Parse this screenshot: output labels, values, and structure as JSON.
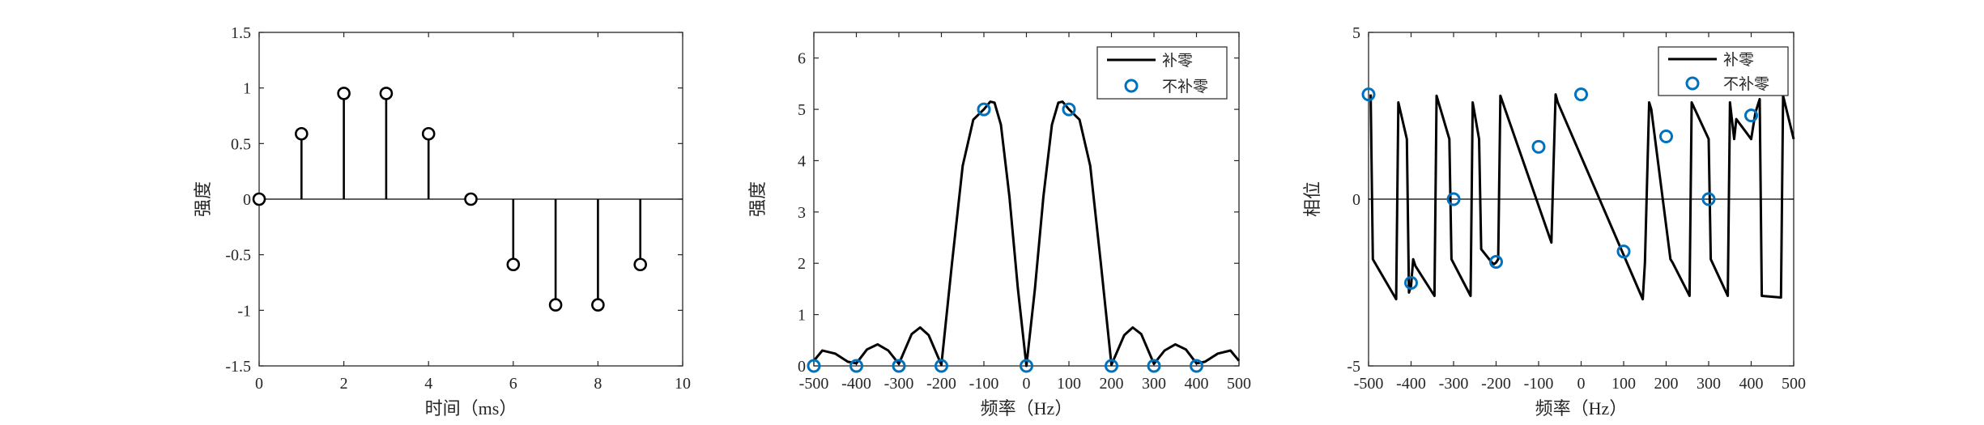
{
  "colors": {
    "line": "#000000",
    "marker_blue": "#0072BD",
    "axes": "#262626",
    "background": "#ffffff"
  },
  "chart_data": [
    {
      "type": "stem",
      "title": "",
      "xlabel": "时间（ms）",
      "ylabel": "强度",
      "xlim": [
        0,
        10
      ],
      "ylim": [
        -1.5,
        1.5
      ],
      "xticks": [
        0,
        2,
        4,
        6,
        8,
        10
      ],
      "yticks": [
        -1.5,
        -1,
        -0.5,
        0,
        0.5,
        1,
        1.5
      ],
      "xtick_labels": [
        "0",
        "2",
        "4",
        "6",
        "8",
        "10"
      ],
      "ytick_labels": [
        "-1.5",
        "-1",
        "-0.5",
        "0",
        "0.5",
        "1",
        "1.5"
      ],
      "baseline": 0,
      "grid": false,
      "series": [
        {
          "x": [
            0,
            1,
            2,
            3,
            4,
            5,
            6,
            7,
            8,
            9
          ],
          "y": [
            0,
            0.588,
            0.951,
            0.951,
            0.588,
            0,
            -0.588,
            -0.951,
            -0.951,
            -0.588
          ]
        }
      ]
    },
    {
      "type": "line",
      "title": "",
      "xlabel": "频率（Hz）",
      "ylabel": "强度",
      "xlim": [
        -500,
        500
      ],
      "ylim": [
        0,
        6.5
      ],
      "xticks": [
        -500,
        -400,
        -300,
        -200,
        -100,
        0,
        100,
        200,
        300,
        400,
        500
      ],
      "yticks": [
        0,
        1,
        2,
        3,
        4,
        5,
        6
      ],
      "xtick_labels": [
        "-500",
        "-400",
        "-300",
        "-200",
        "-100",
        "0",
        "100",
        "200",
        "300",
        "400",
        "500"
      ],
      "ytick_labels": [
        "0",
        "1",
        "2",
        "3",
        "4",
        "5",
        "6"
      ],
      "grid": false,
      "legend_position": "top-right",
      "series": [
        {
          "name": "补零",
          "style": "line",
          "x": [
            -500,
            -480,
            -450,
            -420,
            -400,
            -375,
            -350,
            -325,
            -300,
            -270,
            -250,
            -230,
            -200,
            -175,
            -150,
            -125,
            -100,
            -85,
            -75,
            -60,
            -40,
            -20,
            0,
            20,
            40,
            60,
            75,
            85,
            100,
            125,
            150,
            175,
            200,
            230,
            250,
            270,
            300,
            325,
            350,
            375,
            400,
            420,
            450,
            480,
            500
          ],
          "y": [
            0.1,
            0.3,
            0.24,
            0.08,
            0.05,
            0.32,
            0.42,
            0.3,
            0.04,
            0.62,
            0.75,
            0.6,
            0.02,
            2.0,
            3.9,
            4.8,
            5.0,
            5.15,
            5.13,
            4.7,
            3.3,
            1.5,
            0.0,
            1.5,
            3.3,
            4.7,
            5.13,
            5.15,
            5.0,
            4.8,
            3.9,
            2.0,
            0.02,
            0.6,
            0.75,
            0.62,
            0.04,
            0.3,
            0.42,
            0.32,
            0.05,
            0.08,
            0.24,
            0.3,
            0.1
          ]
        },
        {
          "name": "不补零",
          "style": "marker",
          "x": [
            -500,
            -400,
            -300,
            -200,
            -100,
            0,
            100,
            200,
            300,
            400
          ],
          "y": [
            0,
            0,
            0,
            0,
            5,
            0,
            5,
            0,
            0,
            0
          ]
        }
      ]
    },
    {
      "type": "line",
      "title": "",
      "xlabel": "频率（Hz）",
      "ylabel": "相位",
      "xlim": [
        -500,
        500
      ],
      "ylim": [
        -5,
        5
      ],
      "xticks": [
        -500,
        -400,
        -300,
        -200,
        -100,
        0,
        100,
        200,
        300,
        400,
        500
      ],
      "yticks": [
        -5,
        0,
        5
      ],
      "xtick_labels": [
        "-500",
        "-400",
        "-300",
        "-200",
        "-100",
        "0",
        "100",
        "200",
        "300",
        "400",
        "500"
      ],
      "ytick_labels": [
        "-5",
        "0",
        "5"
      ],
      "grid": false,
      "zero_line": true,
      "legend_position": "top-right",
      "series": [
        {
          "name": "补零",
          "style": "line",
          "x": [
            -495,
            -490,
            -435,
            -430,
            -410,
            -405,
            -400,
            -395,
            -390,
            -345,
            -340,
            -310,
            -305,
            -260,
            -255,
            -240,
            -235,
            -210,
            -205,
            -200,
            -195,
            -190,
            -70,
            -65,
            -60,
            -55,
            -50,
            145,
            150,
            160,
            165,
            210,
            215,
            255,
            260,
            300,
            305,
            345,
            350,
            360,
            365,
            400,
            405,
            410,
            420,
            425,
            470,
            475,
            500
          ],
          "y": [
            3.14,
            -1.8,
            -3.0,
            2.9,
            1.8,
            -2.8,
            -2.6,
            -1.8,
            -2.0,
            -2.9,
            3.1,
            1.8,
            -1.8,
            -2.9,
            2.9,
            1.8,
            -1.5,
            -1.9,
            -1.95,
            -1.9,
            -1.8,
            3.1,
            -1.3,
            1.0,
            3.14,
            2.9,
            2.75,
            -3.0,
            -1.9,
            2.9,
            2.7,
            -1.8,
            -1.9,
            -2.9,
            2.9,
            1.8,
            -1.8,
            -2.9,
            2.9,
            1.8,
            2.4,
            1.8,
            2.2,
            2.6,
            3.0,
            -2.9,
            -2.95,
            3.1,
            1.8
          ]
        },
        {
          "name": "不补零",
          "style": "marker",
          "x": [
            -500,
            -400,
            -300,
            -200,
            -100,
            0,
            100,
            200,
            300,
            400
          ],
          "y": [
            3.14,
            -2.51,
            0,
            -1.88,
            1.57,
            3.14,
            -1.57,
            1.88,
            0,
            2.51
          ]
        }
      ]
    }
  ]
}
